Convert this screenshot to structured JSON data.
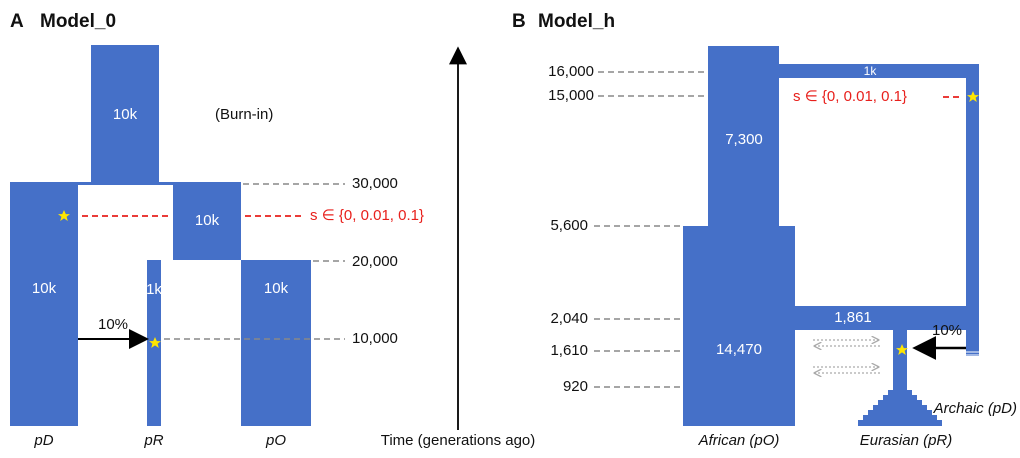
{
  "panel_a": {
    "letter": "A",
    "title": "Model_0",
    "note": "(Burn-in)",
    "ancestral_sizes": [
      "10k",
      "10k"
    ],
    "populations": [
      {
        "label": "pD",
        "size": "10k"
      },
      {
        "label": "pR",
        "size": "1k"
      },
      {
        "label": "pO",
        "size": "10k"
      }
    ],
    "times": [
      "30,000",
      "20,000",
      "10,000"
    ],
    "selection": "s ∈ {0, 0.01, 0.1}",
    "migration": "10%"
  },
  "axis_label": "Time (generations ago)",
  "panel_b": {
    "letter": "B",
    "title": "Model_h",
    "times": [
      "16,000",
      "15,000",
      "5,600",
      "2,040",
      "1,610",
      "920"
    ],
    "sizes": {
      "archaic": "1k",
      "ancestral": "7,300",
      "african": "14,470",
      "bottleneck": "1,861"
    },
    "selection": "s ∈ {0, 0.01, 0.1}",
    "migration": "10%",
    "populations": [
      "African (pO)",
      "Eurasian (pR)",
      "Archaic (pD)"
    ]
  }
}
